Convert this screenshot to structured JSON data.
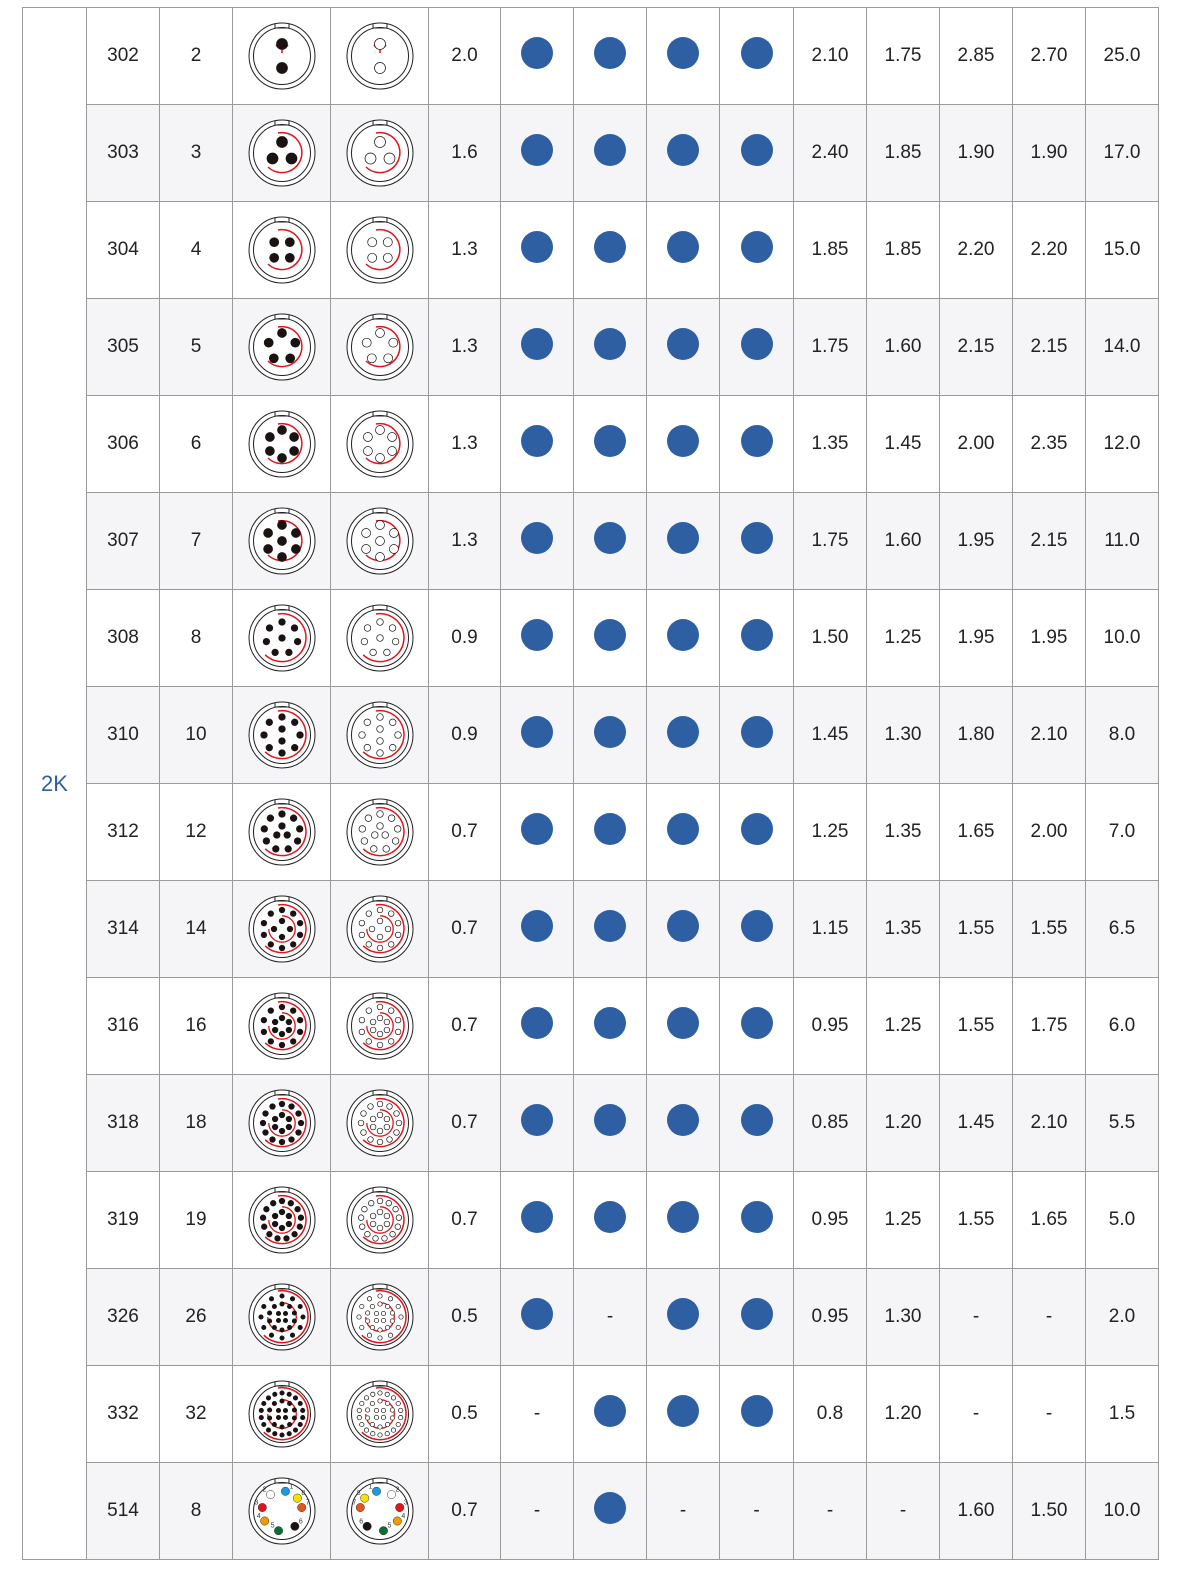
{
  "series_label": "2K",
  "colors": {
    "dot": "#2e5fa3",
    "line": "#e3131b",
    "alt_row": "#f5f4f6"
  },
  "pin_colors_514": {
    "1": "#1b9ce2",
    "2": "#ffffff",
    "3": "#e3131b",
    "4": "#f39a00",
    "5": "#0b6e35",
    "6": "#1a1311",
    "7": "#e4561c",
    "8": "#f6e400"
  },
  "rows": [
    {
      "model": "302",
      "contacts": "2",
      "size": "2.0",
      "avail": [
        true,
        true,
        true,
        true
      ],
      "dims": [
        "2.10",
        "1.75",
        "2.85",
        "2.70"
      ],
      "last": "25.0"
    },
    {
      "model": "303",
      "contacts": "3",
      "size": "1.6",
      "avail": [
        true,
        true,
        true,
        true
      ],
      "dims": [
        "2.40",
        "1.85",
        "1.90",
        "1.90"
      ],
      "last": "17.0"
    },
    {
      "model": "304",
      "contacts": "4",
      "size": "1.3",
      "avail": [
        true,
        true,
        true,
        true
      ],
      "dims": [
        "1.85",
        "1.85",
        "2.20",
        "2.20"
      ],
      "last": "15.0"
    },
    {
      "model": "305",
      "contacts": "5",
      "size": "1.3",
      "avail": [
        true,
        true,
        true,
        true
      ],
      "dims": [
        "1.75",
        "1.60",
        "2.15",
        "2.15"
      ],
      "last": "14.0"
    },
    {
      "model": "306",
      "contacts": "6",
      "size": "1.3",
      "avail": [
        true,
        true,
        true,
        true
      ],
      "dims": [
        "1.35",
        "1.45",
        "2.00",
        "2.35"
      ],
      "last": "12.0"
    },
    {
      "model": "307",
      "contacts": "7",
      "size": "1.3",
      "avail": [
        true,
        true,
        true,
        true
      ],
      "dims": [
        "1.75",
        "1.60",
        "1.95",
        "2.15"
      ],
      "last": "11.0"
    },
    {
      "model": "308",
      "contacts": "8",
      "size": "0.9",
      "avail": [
        true,
        true,
        true,
        true
      ],
      "dims": [
        "1.50",
        "1.25",
        "1.95",
        "1.95"
      ],
      "last": "10.0"
    },
    {
      "model": "310",
      "contacts": "10",
      "size": "0.9",
      "avail": [
        true,
        true,
        true,
        true
      ],
      "dims": [
        "1.45",
        "1.30",
        "1.80",
        "2.10"
      ],
      "last": "8.0"
    },
    {
      "model": "312",
      "contacts": "12",
      "size": "0.7",
      "avail": [
        true,
        true,
        true,
        true
      ],
      "dims": [
        "1.25",
        "1.35",
        "1.65",
        "2.00"
      ],
      "last": "7.0"
    },
    {
      "model": "314",
      "contacts": "14",
      "size": "0.7",
      "avail": [
        true,
        true,
        true,
        true
      ],
      "dims": [
        "1.15",
        "1.35",
        "1.55",
        "1.55"
      ],
      "last": "6.5"
    },
    {
      "model": "316",
      "contacts": "16",
      "size": "0.7",
      "avail": [
        true,
        true,
        true,
        true
      ],
      "dims": [
        "0.95",
        "1.25",
        "1.55",
        "1.75"
      ],
      "last": "6.0"
    },
    {
      "model": "318",
      "contacts": "18",
      "size": "0.7",
      "avail": [
        true,
        true,
        true,
        true
      ],
      "dims": [
        "0.85",
        "1.20",
        "1.45",
        "2.10"
      ],
      "last": "5.5"
    },
    {
      "model": "319",
      "contacts": "19",
      "size": "0.7",
      "avail": [
        true,
        true,
        true,
        true
      ],
      "dims": [
        "0.95",
        "1.25",
        "1.55",
        "1.65"
      ],
      "last": "5.0"
    },
    {
      "model": "326",
      "contacts": "26",
      "size": "0.5",
      "avail": [
        true,
        "-",
        true,
        true
      ],
      "dims": [
        "0.95",
        "1.30",
        "-",
        "-"
      ],
      "last": "2.0"
    },
    {
      "model": "332",
      "contacts": "32",
      "size": "0.5",
      "avail": [
        "-",
        true,
        true,
        true
      ],
      "dims": [
        "0.8",
        "1.20",
        "-",
        "-"
      ],
      "last": "1.5"
    },
    {
      "model": "514",
      "contacts": "8",
      "size": "0.7",
      "avail": [
        "-",
        true,
        "-",
        "-"
      ],
      "dims": [
        "-",
        "-",
        "1.60",
        "1.50"
      ],
      "last": "10.0"
    }
  ]
}
